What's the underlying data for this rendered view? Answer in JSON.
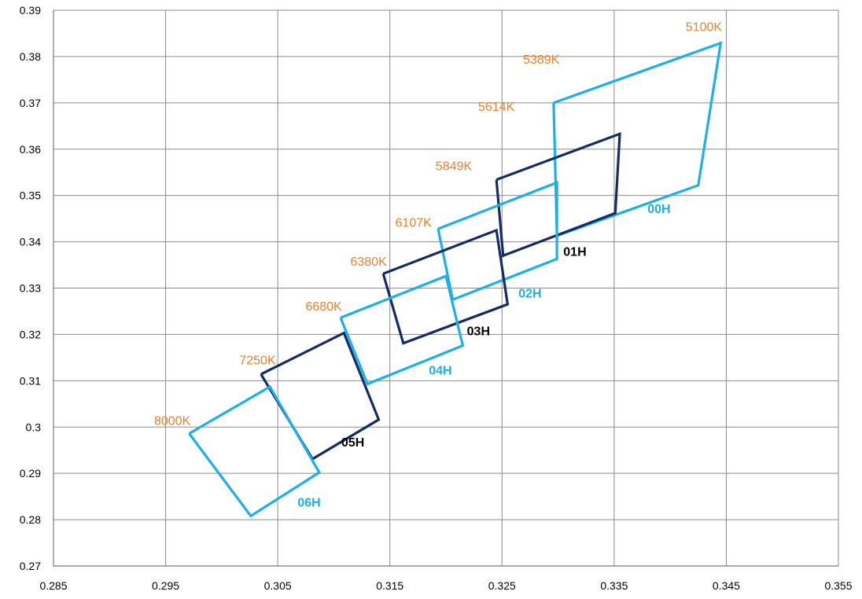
{
  "chart_data": {
    "type": "line",
    "title": "",
    "xlabel": "",
    "ylabel": "",
    "xlim": [
      0.285,
      0.355
    ],
    "ylim": [
      0.27,
      0.39
    ],
    "x_ticks": [
      0.285,
      0.295,
      0.305,
      0.315,
      0.325,
      0.335,
      0.345,
      0.355
    ],
    "x_tick_labels": [
      "0.285",
      "0.295",
      "0.305",
      "0.315",
      "0.325",
      "0.335",
      "0.345",
      "0.355"
    ],
    "y_ticks": [
      0.27,
      0.28,
      0.29,
      0.3,
      0.31,
      0.32,
      0.33,
      0.34,
      0.35,
      0.36,
      0.37,
      0.38,
      0.39
    ],
    "y_tick_labels": [
      "0.27",
      "0.28",
      "0.29",
      "0.3",
      "0.31",
      "0.32",
      "0.33",
      "0.34",
      "0.35",
      "0.36",
      "0.37",
      "0.38",
      "0.39"
    ],
    "grid": true,
    "colors": {
      "light": "#1CB0E8",
      "dark": "#142B63",
      "cct": "#E8822E",
      "dark_label": "#000000"
    },
    "series": [
      {
        "name": "00H",
        "color_key": "light",
        "points": [
          [
            0.3296,
            0.37
          ],
          [
            0.3445,
            0.3829
          ],
          [
            0.3425,
            0.3522
          ],
          [
            0.3299,
            0.3413
          ],
          [
            0.3296,
            0.37
          ]
        ],
        "label_anchor": [
          0.339,
          0.3462
        ]
      },
      {
        "name": "01H",
        "color_key": "dark",
        "points": [
          [
            0.3245,
            0.3534
          ],
          [
            0.3355,
            0.3633
          ],
          [
            0.3351,
            0.3462
          ],
          [
            0.3251,
            0.337
          ],
          [
            0.3245,
            0.3534
          ]
        ],
        "label_anchor": [
          0.3315,
          0.337
        ]
      },
      {
        "name": "02H",
        "color_key": "light",
        "points": [
          [
            0.3193,
            0.3428
          ],
          [
            0.3299,
            0.3528
          ],
          [
            0.3299,
            0.3363
          ],
          [
            0.3206,
            0.3275
          ],
          [
            0.3193,
            0.3428
          ]
        ],
        "label_anchor": [
          0.3275,
          0.328
        ]
      },
      {
        "name": "03H",
        "color_key": "dark",
        "points": [
          [
            0.3144,
            0.3331
          ],
          [
            0.3245,
            0.3425
          ],
          [
            0.3255,
            0.3265
          ],
          [
            0.3162,
            0.3181
          ],
          [
            0.3144,
            0.3331
          ]
        ],
        "label_anchor": [
          0.3229,
          0.3198
        ]
      },
      {
        "name": "04H",
        "color_key": "light",
        "points": [
          [
            0.3106,
            0.3236
          ],
          [
            0.32,
            0.3326
          ],
          [
            0.3215,
            0.3176
          ],
          [
            0.313,
            0.3093
          ],
          [
            0.3106,
            0.3236
          ]
        ],
        "label_anchor": [
          0.3195,
          0.3113
        ]
      },
      {
        "name": "05H",
        "color_key": "dark",
        "points": [
          [
            0.3035,
            0.3114
          ],
          [
            0.3109,
            0.3203
          ],
          [
            0.314,
            0.3016
          ],
          [
            0.3081,
            0.2931
          ],
          [
            0.3035,
            0.3114
          ]
        ],
        "label_anchor": [
          0.3117,
          0.2958
        ]
      },
      {
        "name": "06H",
        "color_key": "light",
        "points": [
          [
            0.2971,
            0.2986
          ],
          [
            0.3043,
            0.3087
          ],
          [
            0.3087,
            0.2902
          ],
          [
            0.3026,
            0.2808
          ],
          [
            0.2971,
            0.2986
          ]
        ],
        "label_anchor": [
          0.3078,
          0.2828
        ]
      }
    ],
    "annotations": [
      {
        "text": "5100K",
        "x": 0.343,
        "y": 0.3855
      },
      {
        "text": "5389K",
        "x": 0.3285,
        "y": 0.3785
      },
      {
        "text": "5614K",
        "x": 0.3245,
        "y": 0.3683
      },
      {
        "text": "5849K",
        "x": 0.3207,
        "y": 0.3555
      },
      {
        "text": "6107K",
        "x": 0.3171,
        "y": 0.3432
      },
      {
        "text": "6380K",
        "x": 0.3131,
        "y": 0.3348
      },
      {
        "text": "6680K",
        "x": 0.3091,
        "y": 0.3252
      },
      {
        "text": "7250K",
        "x": 0.3032,
        "y": 0.3135
      },
      {
        "text": "8000K",
        "x": 0.2956,
        "y": 0.3005
      }
    ]
  }
}
